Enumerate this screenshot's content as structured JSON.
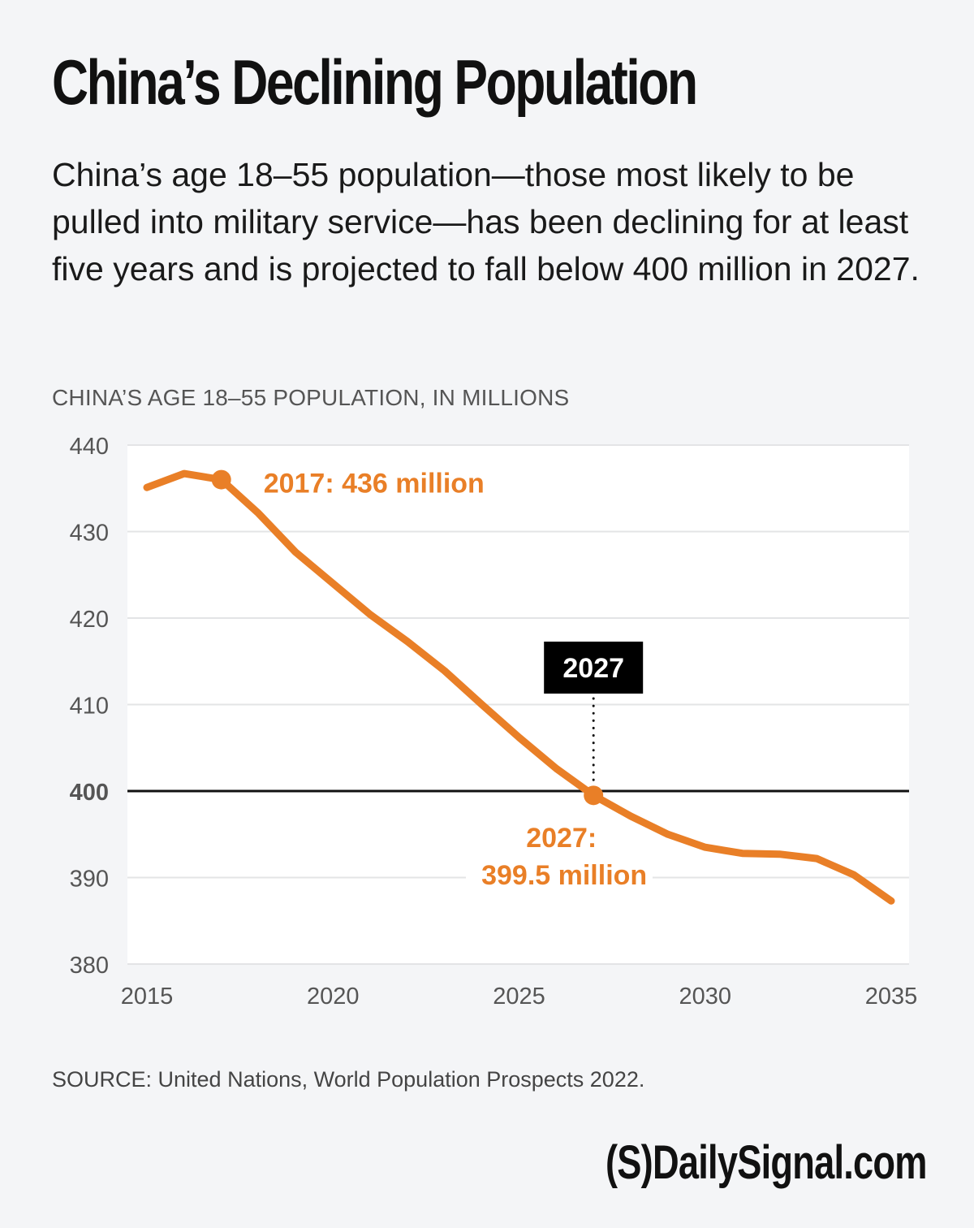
{
  "header": {
    "title": "China’s Declining Population",
    "subtitle": "China’s age 18–55 population—those most likely to be pulled into military service—has been declining for at least five years and is projected to fall below 400 million in 2027."
  },
  "footer": {
    "source": "SOURCE: United Nations, World Population Prospects 2022.",
    "logo": "(S)DailySignal.com"
  },
  "colors": {
    "line": "#e97f27",
    "threshold": "#111111",
    "gridline": "#e3e4e6",
    "plot_background": "#ffffff",
    "page_background": "#f4f5f7"
  },
  "chart_data": {
    "type": "line",
    "title": "China’s Declining Population",
    "ylabel": "CHINA’S AGE 18–55 POPULATION, IN MILLIONS",
    "xlabel": "",
    "x": [
      2015,
      2016,
      2017,
      2018,
      2019,
      2020,
      2021,
      2022,
      2023,
      2024,
      2025,
      2026,
      2027,
      2028,
      2029,
      2030,
      2031,
      2032,
      2033,
      2034,
      2035
    ],
    "series": [
      {
        "name": "Age 18–55 population (millions)",
        "values": [
          435.1,
          436.7,
          436.0,
          432.1,
          427.6,
          424.0,
          420.4,
          417.3,
          413.9,
          410.0,
          406.2,
          402.6,
          399.5,
          397.1,
          395.0,
          393.5,
          392.8,
          392.7,
          392.2,
          390.3,
          387.3
        ]
      }
    ],
    "xlim": [
      2015,
      2035
    ],
    "ylim": [
      380,
      440
    ],
    "xticks": [
      "2015",
      "2020",
      "2025",
      "2030",
      "2035"
    ],
    "yticks": [
      "380",
      "390",
      "400",
      "410",
      "420",
      "430",
      "440"
    ],
    "grid": true,
    "reference_line": {
      "value": 400,
      "label": "400"
    },
    "annotations": [
      {
        "x": 2017,
        "y": 436,
        "text": "2017: 436 million"
      },
      {
        "x": 2027,
        "y": 399.5,
        "text_lines": [
          "2027:",
          "399.5 million"
        ]
      },
      {
        "x": 2027,
        "marker_label": "2027"
      }
    ]
  }
}
